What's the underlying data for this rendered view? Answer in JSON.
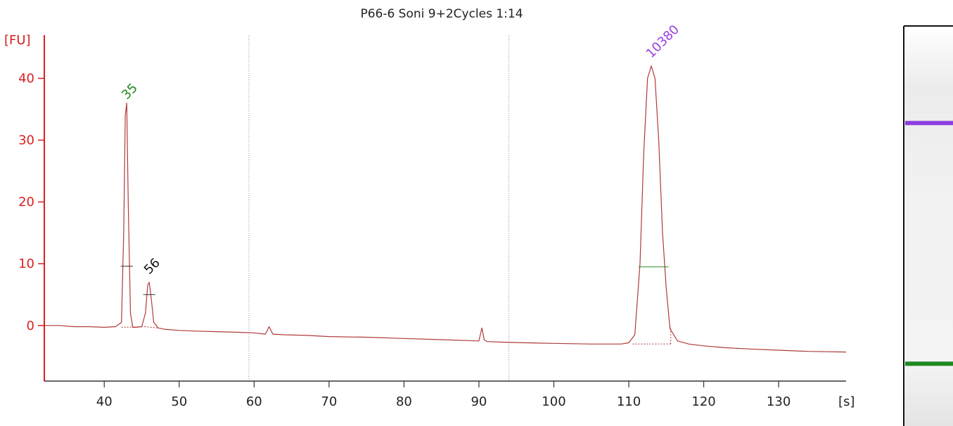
{
  "chart_data": {
    "type": "line",
    "title": "P66-6 Soni 9+2Cycles 1:14",
    "ylabel": "[FU]",
    "xlabel": "[s]",
    "xlim": [
      32,
      139
    ],
    "ylim": [
      -9,
      47
    ],
    "xticks": [
      40,
      50,
      60,
      70,
      80,
      90,
      100,
      110,
      120,
      130
    ],
    "yticks": [
      0,
      10,
      20,
      30,
      40
    ],
    "colors": {
      "axis_y": "#d91f1f",
      "axis_x": "#333333",
      "trace": "#b03a3a",
      "marker_green": "#1f8a1f",
      "marker_purple": "#9b3fe0",
      "marker_black": "#111111",
      "divider": "#8a8ac0"
    },
    "dividers_x": [
      59.3,
      94.0
    ],
    "peak_labels": [
      {
        "text": "35",
        "x": 43.0,
        "y": 36.5,
        "color": "#1f8a1f"
      },
      {
        "text": "56",
        "x": 46.0,
        "y": 8.2,
        "color": "#111111"
      },
      {
        "text": "10380",
        "x": 113.0,
        "y": 43.2,
        "color": "#9b3fe0"
      }
    ],
    "half_height_bars": [
      {
        "x1": 42.2,
        "x2": 43.8,
        "y": 9.6
      },
      {
        "x1": 45.2,
        "x2": 46.8,
        "y": 5.0
      },
      {
        "x1": 111.3,
        "x2": 115.3,
        "y": 9.5
      }
    ],
    "series": [
      {
        "x": [
          32,
          34,
          36,
          38,
          40,
          41.5,
          42.3,
          42.6,
          42.8,
          43.0,
          43.2,
          43.5,
          43.8,
          44.2,
          45.0,
          45.5,
          45.8,
          46.0,
          46.3,
          46.6,
          47.2,
          48,
          50,
          52,
          55,
          58,
          60,
          61.5,
          62,
          62.5,
          64,
          67,
          70,
          75,
          80,
          85,
          90,
          90.4,
          90.7,
          91.1,
          93,
          96,
          100,
          105,
          109,
          110,
          110.8,
          111.5,
          112.0,
          112.5,
          113.0,
          113.5,
          114.0,
          114.5,
          115.0,
          115.5,
          116.5,
          118,
          120,
          123,
          126,
          130,
          134,
          139
        ],
        "y": [
          0,
          0,
          -0.2,
          -0.2,
          -0.3,
          -0.2,
          0.5,
          15,
          34,
          36,
          20,
          2,
          -0.3,
          -0.3,
          -0.2,
          2,
          6.5,
          7,
          4,
          0.5,
          -0.4,
          -0.6,
          -0.8,
          -0.9,
          -1.0,
          -1.1,
          -1.2,
          -1.4,
          -0.2,
          -1.4,
          -1.5,
          -1.6,
          -1.8,
          -1.9,
          -2.1,
          -2.3,
          -2.5,
          -0.4,
          -2.3,
          -2.6,
          -2.7,
          -2.8,
          -2.9,
          -3.0,
          -3.0,
          -2.8,
          -1.5,
          10,
          28,
          40,
          42,
          40,
          30,
          15,
          6,
          -0.5,
          -2.5,
          -3.0,
          -3.3,
          -3.6,
          -3.8,
          -4.0,
          -4.2,
          -4.3
        ]
      }
    ]
  },
  "gel": {
    "bands": [
      {
        "level": 0.73,
        "color": "#8a3fe0"
      },
      {
        "level": 0.03,
        "color": "#1e8a1e"
      }
    ]
  }
}
